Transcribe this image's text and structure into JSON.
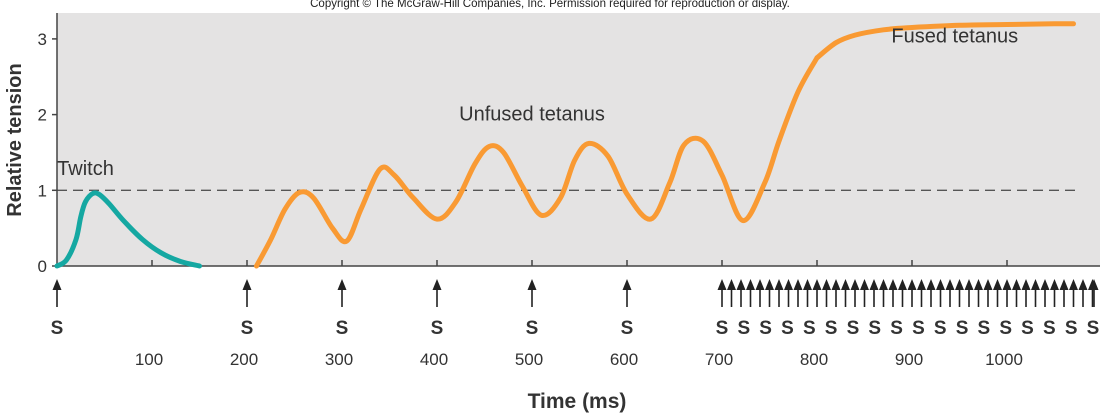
{
  "copyright": "Copyright © The McGraw-Hill Companies, Inc. Permission required for reproduction or display.",
  "colors": {
    "panel": "#e4e3e3",
    "twitch": "#15a8a2",
    "tetanus": "#f99a33",
    "text": "#333333",
    "axis": "#444444"
  },
  "chart_data": {
    "type": "line",
    "title": "",
    "xlabel": "Time (ms)",
    "ylabel": "Relative tension",
    "xlim": [
      0,
      1100
    ],
    "ylim": [
      0,
      3.3
    ],
    "x_ticks": [
      100,
      200,
      300,
      400,
      500,
      600,
      700,
      800,
      900,
      1000
    ],
    "x_tick_labels": [
      "100",
      "200",
      "300",
      "400",
      "500",
      "600",
      "700",
      "800",
      "900",
      "1000"
    ],
    "y_ticks": [
      0,
      1,
      2,
      3
    ],
    "y_tick_labels": [
      "0",
      "1",
      "2",
      "3"
    ],
    "reference_line": {
      "y": 1,
      "style": "dashed"
    },
    "series": [
      {
        "name": "Twitch",
        "color": "#15a8a2",
        "x": [
          0,
          10,
          20,
          25,
          30,
          38,
          45,
          55,
          70,
          90,
          110,
          130,
          150
        ],
        "y": [
          0,
          0.08,
          0.35,
          0.65,
          0.85,
          0.96,
          0.94,
          0.82,
          0.6,
          0.35,
          0.17,
          0.06,
          0
        ]
      },
      {
        "name": "Unfused tetanus",
        "color": "#f99a33",
        "x": [
          210,
          225,
          240,
          255,
          270,
          290,
          305,
          320,
          340,
          355,
          375,
          400,
          420,
          440,
          455,
          470,
          490,
          510,
          530,
          545,
          560,
          580,
          600,
          625,
          645,
          660,
          680,
          700,
          722,
          745,
          760,
          780,
          800
        ],
        "y": [
          0,
          0.35,
          0.75,
          0.97,
          0.9,
          0.5,
          0.33,
          0.75,
          1.28,
          1.2,
          0.9,
          0.62,
          0.85,
          1.35,
          1.58,
          1.5,
          1.05,
          0.67,
          0.9,
          1.4,
          1.62,
          1.45,
          0.95,
          0.62,
          1.1,
          1.6,
          1.65,
          1.2,
          0.6,
          1.1,
          1.65,
          2.3,
          2.75
        ]
      },
      {
        "name": "Fused tetanus",
        "color": "#f99a33",
        "x": [
          800,
          820,
          840,
          870,
          900,
          950,
          1000,
          1050,
          1070
        ],
        "y": [
          2.75,
          2.95,
          3.05,
          3.12,
          3.15,
          3.18,
          3.19,
          3.2,
          3.2
        ]
      }
    ],
    "annotations": [
      {
        "text": "Twitch",
        "x": 30,
        "y": 1.2
      },
      {
        "text": "Unfused tetanus",
        "x": 500,
        "y": 1.92
      },
      {
        "text": "Fused tetanus",
        "x": 945,
        "y": 2.95
      }
    ],
    "stimuli": {
      "label": "S",
      "single": [
        0,
        200,
        300,
        400,
        500,
        600
      ],
      "train_start": 700,
      "train_end": 1100,
      "train_interval": 10,
      "label_count_in_train": 18
    }
  }
}
